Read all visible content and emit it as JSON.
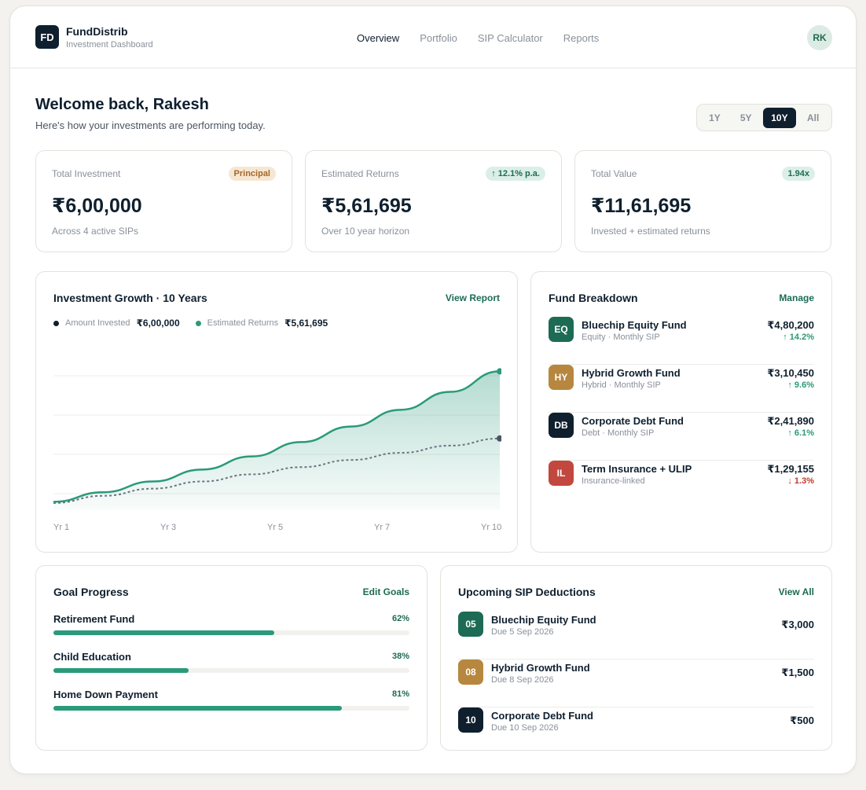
{
  "brand": {
    "logo": "FD",
    "name": "FundDistrib",
    "subtitle": "Investment Dashboard"
  },
  "nav": [
    {
      "label": "Overview",
      "active": true
    },
    {
      "label": "Portfolio",
      "active": false
    },
    {
      "label": "SIP Calculator",
      "active": false
    },
    {
      "label": "Reports",
      "active": false
    }
  ],
  "user": {
    "initials": "RK"
  },
  "welcome": {
    "title": "Welcome back, Rakesh",
    "subtitle": "Here's how your investments are performing today."
  },
  "range": {
    "options": [
      "1Y",
      "5Y",
      "10Y",
      "All"
    ],
    "selected": "10Y"
  },
  "stats": [
    {
      "label": "Total Investment",
      "badge": "Principal",
      "value": "₹6,00,000",
      "note": "Across 4 active SIPs"
    },
    {
      "label": "Estimated Returns",
      "badge": "↑ 12.1% p.a.",
      "value": "₹5,61,695",
      "note": "Over 10 year horizon"
    },
    {
      "label": "Total Value",
      "badge": "1.94x",
      "value": "₹11,61,695",
      "note": "Invested + estimated returns"
    }
  ],
  "growth": {
    "title": "Investment Growth · 10 Years",
    "link": "View Report",
    "legend": [
      {
        "label": "Amount Invested",
        "value": "₹6,00,000"
      },
      {
        "label": "Estimated Returns",
        "value": "₹5,61,695"
      }
    ]
  },
  "chart_data": {
    "type": "area",
    "x_tick_labels": [
      "Yr 1",
      "Yr 3",
      "Yr 5",
      "Yr 7",
      "Yr 10"
    ],
    "x": [
      1,
      2,
      3,
      4,
      5,
      6,
      7,
      8,
      9,
      10
    ],
    "series": [
      {
        "name": "Total Value",
        "values": [
          70000,
          150000,
          240000,
          340000,
          450000,
          570000,
          700000,
          840000,
          990000,
          1161695
        ]
      },
      {
        "name": "Amount Invested",
        "values": [
          60000,
          120000,
          180000,
          240000,
          300000,
          360000,
          420000,
          480000,
          540000,
          600000
        ]
      }
    ],
    "grid": true,
    "colors": {
      "total": "#2a9a7a",
      "invested": "#6b7280",
      "fill": "#2a9a7a"
    }
  },
  "breakdown": {
    "title": "Fund Breakdown",
    "link": "Manage",
    "funds": [
      {
        "code": "EQ",
        "name": "Bluechip Equity Fund",
        "sub": "Equity · Monthly SIP",
        "amount": "₹4,80,200",
        "change": "↑ 14.2%",
        "dir": "up",
        "color": "#1d6b55"
      },
      {
        "code": "HY",
        "name": "Hybrid Growth Fund",
        "sub": "Hybrid · Monthly SIP",
        "amount": "₹3,10,450",
        "change": "↑ 9.6%",
        "dir": "up",
        "color": "#b7873f"
      },
      {
        "code": "DB",
        "name": "Corporate Debt Fund",
        "sub": "Debt · Monthly SIP",
        "amount": "₹2,41,890",
        "change": "↑ 6.1%",
        "dir": "up",
        "color": "#0f1f2e"
      },
      {
        "code": "IL",
        "name": "Term Insurance + ULIP",
        "sub": "Insurance-linked",
        "amount": "₹1,29,155",
        "change": "↓ 1.3%",
        "dir": "down",
        "color": "#c2473e"
      }
    ]
  },
  "goals": {
    "title": "Goal Progress",
    "link": "Edit Goals",
    "items": [
      {
        "name": "Retirement Fund",
        "pct_label": "62%",
        "pct": 0.62
      },
      {
        "name": "Child Education",
        "pct_label": "38%",
        "pct": 0.38
      },
      {
        "name": "Home Down Payment",
        "pct_label": "81%",
        "pct": 0.81
      }
    ]
  },
  "sips": {
    "title": "Upcoming SIP Deductions",
    "link": "View All",
    "items": [
      {
        "day": "05",
        "name": "Bluechip Equity Fund",
        "due": "Due 5 Sep 2026",
        "amount": "₹3,000",
        "color": "#1d6b55"
      },
      {
        "day": "08",
        "name": "Hybrid Growth Fund",
        "due": "Due 8 Sep 2026",
        "amount": "₹1,500",
        "color": "#b7873f"
      },
      {
        "day": "10",
        "name": "Corporate Debt Fund",
        "due": "Due 10 Sep 2026",
        "amount": "₹500",
        "color": "#0f1f2e"
      }
    ]
  }
}
